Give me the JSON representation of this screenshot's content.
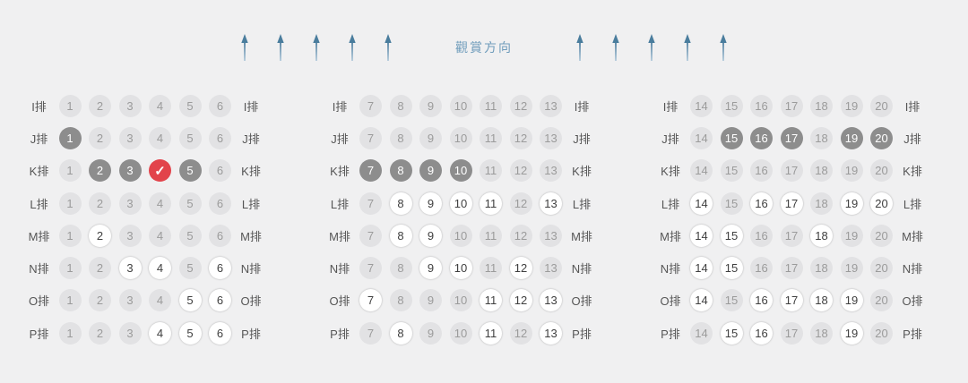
{
  "header": {
    "title": "觀賞方向",
    "left_arrow_count": 5,
    "right_arrow_count": 5
  },
  "seat_state_legend": {
    "u": "unavailable-light-gray",
    "a": "available-white",
    "s": "sold-dark-gray",
    "x": "selected-red-check"
  },
  "selected_check_glyph": "✓",
  "colors": {
    "background": "#f0f0f1",
    "seat_unavailable": "#e2e2e4",
    "seat_unavailable_text": "#9b9b9b",
    "seat_available": "#ffffff",
    "seat_available_text": "#3f3f3f",
    "seat_sold": "#8d8d8d",
    "seat_selected_red": "#e2434b",
    "row_label_text": "#565656",
    "title_blue": "#6f9cbb",
    "arrow_head": "#4a7d9d",
    "arrow_shaft_top": "#5784a3",
    "arrow_shaft_bottom": "#b9cedd"
  },
  "blocks": [
    {
      "id": "left",
      "rows": [
        {
          "label": "I排",
          "seats": [
            [
              "1",
              "u"
            ],
            [
              "2",
              "u"
            ],
            [
              "3",
              "u"
            ],
            [
              "4",
              "u"
            ],
            [
              "5",
              "u"
            ],
            [
              "6",
              "u"
            ]
          ]
        },
        {
          "label": "J排",
          "seats": [
            [
              "1",
              "s"
            ],
            [
              "2",
              "u"
            ],
            [
              "3",
              "u"
            ],
            [
              "4",
              "u"
            ],
            [
              "5",
              "u"
            ],
            [
              "6",
              "u"
            ]
          ]
        },
        {
          "label": "K排",
          "seats": [
            [
              "1",
              "u"
            ],
            [
              "2",
              "s"
            ],
            [
              "3",
              "s"
            ],
            [
              "4",
              "x"
            ],
            [
              "5",
              "s"
            ],
            [
              "6",
              "u"
            ]
          ]
        },
        {
          "label": "L排",
          "seats": [
            [
              "1",
              "u"
            ],
            [
              "2",
              "u"
            ],
            [
              "3",
              "u"
            ],
            [
              "4",
              "u"
            ],
            [
              "5",
              "u"
            ],
            [
              "6",
              "u"
            ]
          ]
        },
        {
          "label": "M排",
          "seats": [
            [
              "1",
              "u"
            ],
            [
              "2",
              "a"
            ],
            [
              "3",
              "u"
            ],
            [
              "4",
              "u"
            ],
            [
              "5",
              "u"
            ],
            [
              "6",
              "u"
            ]
          ]
        },
        {
          "label": "N排",
          "seats": [
            [
              "1",
              "u"
            ],
            [
              "2",
              "u"
            ],
            [
              "3",
              "a"
            ],
            [
              "4",
              "a"
            ],
            [
              "5",
              "u"
            ],
            [
              "6",
              "a"
            ]
          ]
        },
        {
          "label": "O排",
          "seats": [
            [
              "1",
              "u"
            ],
            [
              "2",
              "u"
            ],
            [
              "3",
              "u"
            ],
            [
              "4",
              "u"
            ],
            [
              "5",
              "a"
            ],
            [
              "6",
              "a"
            ]
          ]
        },
        {
          "label": "P排",
          "seats": [
            [
              "1",
              "u"
            ],
            [
              "2",
              "u"
            ],
            [
              "3",
              "u"
            ],
            [
              "4",
              "a"
            ],
            [
              "5",
              "a"
            ],
            [
              "6",
              "a"
            ]
          ]
        }
      ]
    },
    {
      "id": "middle",
      "rows": [
        {
          "label": "I排",
          "seats": [
            [
              "7",
              "u"
            ],
            [
              "8",
              "u"
            ],
            [
              "9",
              "u"
            ],
            [
              "10",
              "u"
            ],
            [
              "11",
              "u"
            ],
            [
              "12",
              "u"
            ],
            [
              "13",
              "u"
            ]
          ]
        },
        {
          "label": "J排",
          "seats": [
            [
              "7",
              "u"
            ],
            [
              "8",
              "u"
            ],
            [
              "9",
              "u"
            ],
            [
              "10",
              "u"
            ],
            [
              "11",
              "u"
            ],
            [
              "12",
              "u"
            ],
            [
              "13",
              "u"
            ]
          ]
        },
        {
          "label": "K排",
          "seats": [
            [
              "7",
              "s"
            ],
            [
              "8",
              "s"
            ],
            [
              "9",
              "s"
            ],
            [
              "10",
              "s"
            ],
            [
              "11",
              "u"
            ],
            [
              "12",
              "u"
            ],
            [
              "13",
              "u"
            ]
          ]
        },
        {
          "label": "L排",
          "seats": [
            [
              "7",
              "u"
            ],
            [
              "8",
              "a"
            ],
            [
              "9",
              "a"
            ],
            [
              "10",
              "a"
            ],
            [
              "11",
              "a"
            ],
            [
              "12",
              "u"
            ],
            [
              "13",
              "a"
            ]
          ]
        },
        {
          "label": "M排",
          "seats": [
            [
              "7",
              "u"
            ],
            [
              "8",
              "a"
            ],
            [
              "9",
              "a"
            ],
            [
              "10",
              "u"
            ],
            [
              "11",
              "u"
            ],
            [
              "12",
              "u"
            ],
            [
              "13",
              "u"
            ]
          ]
        },
        {
          "label": "N排",
          "seats": [
            [
              "7",
              "u"
            ],
            [
              "8",
              "u"
            ],
            [
              "9",
              "a"
            ],
            [
              "10",
              "a"
            ],
            [
              "11",
              "u"
            ],
            [
              "12",
              "a"
            ],
            [
              "13",
              "u"
            ]
          ]
        },
        {
          "label": "O排",
          "seats": [
            [
              "7",
              "a"
            ],
            [
              "8",
              "u"
            ],
            [
              "9",
              "u"
            ],
            [
              "10",
              "u"
            ],
            [
              "11",
              "a"
            ],
            [
              "12",
              "a"
            ],
            [
              "13",
              "a"
            ]
          ]
        },
        {
          "label": "P排",
          "seats": [
            [
              "7",
              "u"
            ],
            [
              "8",
              "a"
            ],
            [
              "9",
              "u"
            ],
            [
              "10",
              "u"
            ],
            [
              "11",
              "a"
            ],
            [
              "12",
              "u"
            ],
            [
              "13",
              "a"
            ]
          ]
        }
      ]
    },
    {
      "id": "right",
      "rows": [
        {
          "label": "I排",
          "seats": [
            [
              "14",
              "u"
            ],
            [
              "15",
              "u"
            ],
            [
              "16",
              "u"
            ],
            [
              "17",
              "u"
            ],
            [
              "18",
              "u"
            ],
            [
              "19",
              "u"
            ],
            [
              "20",
              "u"
            ]
          ]
        },
        {
          "label": "J排",
          "seats": [
            [
              "14",
              "u"
            ],
            [
              "15",
              "s"
            ],
            [
              "16",
              "s"
            ],
            [
              "17",
              "s"
            ],
            [
              "18",
              "u"
            ],
            [
              "19",
              "s"
            ],
            [
              "20",
              "s"
            ]
          ]
        },
        {
          "label": "K排",
          "seats": [
            [
              "14",
              "u"
            ],
            [
              "15",
              "u"
            ],
            [
              "16",
              "u"
            ],
            [
              "17",
              "u"
            ],
            [
              "18",
              "u"
            ],
            [
              "19",
              "u"
            ],
            [
              "20",
              "u"
            ]
          ]
        },
        {
          "label": "L排",
          "seats": [
            [
              "14",
              "a"
            ],
            [
              "15",
              "u"
            ],
            [
              "16",
              "a"
            ],
            [
              "17",
              "a"
            ],
            [
              "18",
              "u"
            ],
            [
              "19",
              "a"
            ],
            [
              "20",
              "a"
            ]
          ]
        },
        {
          "label": "M排",
          "seats": [
            [
              "14",
              "a"
            ],
            [
              "15",
              "a"
            ],
            [
              "16",
              "u"
            ],
            [
              "17",
              "u"
            ],
            [
              "18",
              "a"
            ],
            [
              "19",
              "u"
            ],
            [
              "20",
              "u"
            ]
          ]
        },
        {
          "label": "N排",
          "seats": [
            [
              "14",
              "a"
            ],
            [
              "15",
              "a"
            ],
            [
              "16",
              "u"
            ],
            [
              "17",
              "u"
            ],
            [
              "18",
              "u"
            ],
            [
              "19",
              "u"
            ],
            [
              "20",
              "u"
            ]
          ]
        },
        {
          "label": "O排",
          "seats": [
            [
              "14",
              "a"
            ],
            [
              "15",
              "u"
            ],
            [
              "16",
              "a"
            ],
            [
              "17",
              "a"
            ],
            [
              "18",
              "a"
            ],
            [
              "19",
              "a"
            ],
            [
              "20",
              "u"
            ]
          ]
        },
        {
          "label": "P排",
          "seats": [
            [
              "14",
              "u"
            ],
            [
              "15",
              "a"
            ],
            [
              "16",
              "a"
            ],
            [
              "17",
              "u"
            ],
            [
              "18",
              "u"
            ],
            [
              "19",
              "a"
            ],
            [
              "20",
              "u"
            ]
          ]
        }
      ]
    }
  ]
}
